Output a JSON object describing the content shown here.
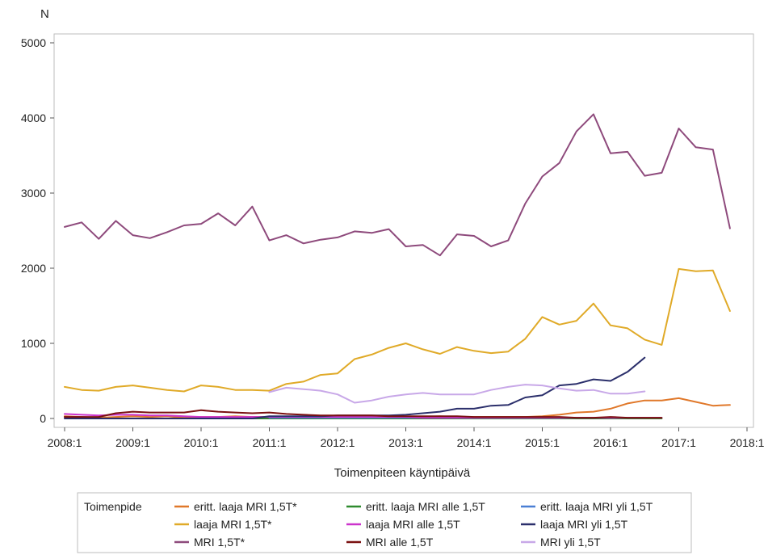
{
  "chart_data": {
    "type": "line",
    "title": "",
    "ylabel": "N",
    "xlabel": "Toimenpiteen käyntipäivä",
    "ylim": [
      0,
      5000
    ],
    "yticks": [
      0,
      1000,
      2000,
      3000,
      4000,
      5000
    ],
    "xlim": [
      2008.0,
      2018.0
    ],
    "xticks": [
      "2008:1",
      "2009:1",
      "2010:1",
      "2011:1",
      "2012:1",
      "2013:1",
      "2014:1",
      "2015:1",
      "2016:1",
      "2017:1",
      "2018:1"
    ],
    "grid": false,
    "legend": {
      "title": "Toimenpide",
      "placement": "bottom",
      "columns": 3
    },
    "x_frequency": "quarterly",
    "series": [
      {
        "name": "eritt. laaja MRI 1,5T*",
        "color": "#e0782a",
        "start": "2008:1",
        "values": [
          30,
          20,
          10,
          20,
          30,
          20,
          30,
          10,
          20,
          20,
          30,
          20,
          20,
          20,
          30,
          20,
          20,
          20,
          30,
          20,
          20,
          20,
          30,
          20,
          20,
          20,
          20,
          20,
          30,
          50,
          80,
          90,
          130,
          200,
          240,
          240,
          270,
          220,
          170,
          180
        ]
      },
      {
        "name": "eritt. laaja MRI alle 1,5T",
        "color": "#2e8b2e",
        "start": "2009:1",
        "values": [
          0,
          0,
          0,
          0,
          0,
          0,
          0,
          0,
          0,
          0,
          0,
          0,
          0,
          0,
          0,
          0,
          0,
          0,
          0,
          0,
          0,
          0,
          0,
          0,
          0,
          0,
          0,
          0,
          0,
          0,
          0,
          0
        ]
      },
      {
        "name": "eritt. laaja MRI yli 1,5T",
        "color": "#4a7fd4",
        "start": "2011:1",
        "values": [
          10,
          10,
          10,
          10,
          10,
          10,
          10,
          10,
          10,
          10,
          10,
          10,
          10,
          10,
          10,
          10,
          10,
          10,
          10,
          10,
          10,
          10,
          10
        ]
      },
      {
        "name": "laaja MRI 1,5T*",
        "color": "#e0aa28",
        "start": "2008:1",
        "values": [
          420,
          380,
          370,
          420,
          440,
          410,
          380,
          360,
          440,
          420,
          380,
          380,
          370,
          460,
          490,
          580,
          600,
          790,
          850,
          940,
          1000,
          920,
          860,
          950,
          900,
          870,
          890,
          1060,
          1350,
          1250,
          1300,
          1530,
          1240,
          1200,
          1050,
          980,
          1990,
          1960,
          1970,
          1430
        ]
      },
      {
        "name": "laaja MRI alle 1,5T",
        "color": "#cc33cc",
        "start": "2008:1",
        "values": [
          60,
          50,
          40,
          50,
          50,
          40,
          40,
          30,
          20,
          20,
          20,
          20,
          20,
          20,
          20,
          20,
          20,
          20,
          20,
          20,
          20,
          10,
          10,
          10,
          10,
          10,
          10,
          10,
          10,
          10,
          10,
          10,
          10,
          10,
          10,
          10
        ]
      },
      {
        "name": "laaja MRI yli 1,5T",
        "color": "#2b2f6b",
        "start": "2008:1",
        "values": [
          0,
          0,
          0,
          0,
          0,
          0,
          0,
          0,
          0,
          0,
          0,
          0,
          30,
          30,
          30,
          30,
          40,
          40,
          40,
          40,
          50,
          70,
          90,
          130,
          130,
          170,
          180,
          280,
          310,
          440,
          460,
          520,
          500,
          620,
          810
        ]
      },
      {
        "name": "MRI 1,5T*",
        "color": "#8e4a7c",
        "start": "2008:1",
        "values": [
          2550,
          2610,
          2390,
          2630,
          2440,
          2400,
          2480,
          2570,
          2590,
          2730,
          2570,
          2820,
          2370,
          2440,
          2330,
          2380,
          2410,
          2490,
          2470,
          2520,
          2290,
          2310,
          2170,
          2450,
          2430,
          2290,
          2370,
          2860,
          3220,
          3400,
          3820,
          4050,
          3530,
          3550,
          3230,
          3270,
          3860,
          3610,
          3580,
          2530
        ]
      },
      {
        "name": "MRI alle 1,5T",
        "color": "#7a1010",
        "start": "2008:1",
        "values": [
          20,
          20,
          20,
          70,
          90,
          80,
          80,
          80,
          110,
          90,
          80,
          70,
          80,
          60,
          50,
          40,
          40,
          40,
          40,
          30,
          30,
          30,
          30,
          30,
          20,
          20,
          20,
          20,
          20,
          20,
          10,
          10,
          20,
          10,
          10,
          10
        ]
      },
      {
        "name": "MRI yli 1,5T",
        "color": "#c8a8e8",
        "start": "2011:1",
        "values": [
          350,
          410,
          390,
          370,
          320,
          210,
          240,
          290,
          320,
          340,
          320,
          320,
          320,
          380,
          420,
          450,
          440,
          400,
          370,
          380,
          330,
          330,
          360
        ]
      }
    ]
  }
}
